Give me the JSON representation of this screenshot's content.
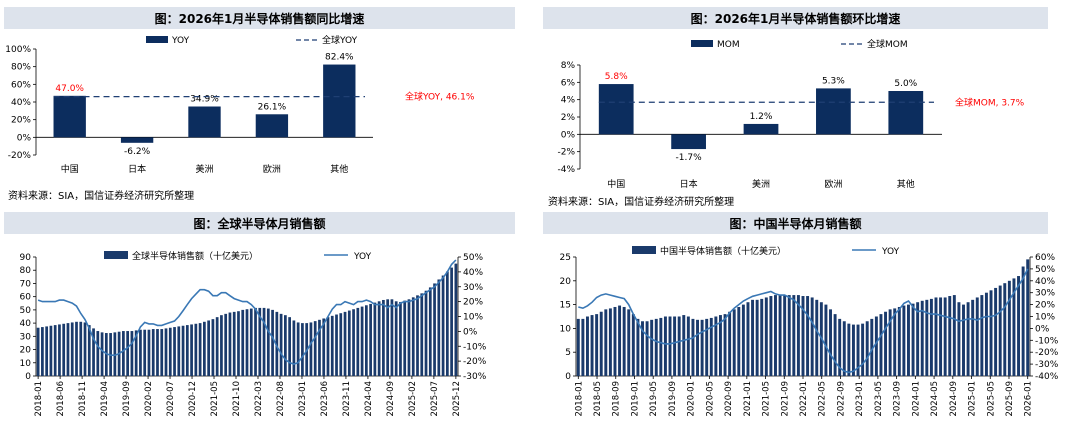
{
  "panels": [
    {
      "title": "图：2026年1月半导体销售额同比增速",
      "source": "资料来源：SIA，国信证券经济研究所整理",
      "chart_data": {
        "type": "bar",
        "categories": [
          "中国",
          "日本",
          "美洲",
          "欧洲",
          "其他"
        ],
        "series": [
          {
            "name": "YOY",
            "values": [
              47.0,
              -6.2,
              34.9,
              26.1,
              82.4
            ]
          }
        ],
        "value_labels": [
          "47.0%",
          "-6.2%",
          "34.9%",
          "26.1%",
          "82.4%"
        ],
        "reference_line": {
          "name": "全球YOY",
          "value": 46.1,
          "label": "全球YOY, 46.1%"
        },
        "yticks": [
          100,
          80,
          60,
          40,
          20,
          0,
          -20
        ],
        "ytick_labels": [
          "100%",
          "80%",
          "60%",
          "40%",
          "20%",
          "0%",
          "-20%"
        ],
        "ylim": [
          -20,
          100
        ],
        "legend": [
          "YOY",
          "全球YOY"
        ],
        "colors": {
          "bar": "#0c2d5e",
          "line": "#1f3f73",
          "highlight": "#ff0000"
        }
      }
    },
    {
      "title": "图：2026年1月半导体销售额环比增速",
      "source": "资料来源：SIA，国信证券经济研究所整理",
      "chart_data": {
        "type": "bar",
        "categories": [
          "中国",
          "日本",
          "美洲",
          "欧洲",
          "其他"
        ],
        "series": [
          {
            "name": "MOM",
            "values": [
              5.8,
              -1.7,
              1.2,
              5.3,
              5.0
            ]
          }
        ],
        "value_labels": [
          "5.8%",
          "-1.7%",
          "1.2%",
          "5.3%",
          "5.0%"
        ],
        "reference_line": {
          "name": "全球MOM",
          "value": 3.7,
          "label": "全球MOM, 3.7%"
        },
        "yticks": [
          8,
          6,
          4,
          2,
          0,
          -2,
          -4
        ],
        "ytick_labels": [
          "8%",
          "6%",
          "4%",
          "2%",
          "0%",
          "-2%",
          "-4%"
        ],
        "ylim": [
          -4,
          8
        ],
        "legend": [
          "MOM",
          "全球MOM"
        ],
        "colors": {
          "bar": "#0c2d5e",
          "line": "#1f3f73",
          "highlight": "#ff0000"
        }
      }
    },
    {
      "title": "图：全球半导体月销售额",
      "chart_data": {
        "type": "bar",
        "legend": [
          "全球半导体销售额（十亿美元）",
          "YOY"
        ],
        "start": "2018-01",
        "bar_values": [
          36.5,
          37.0,
          37.5,
          38.0,
          38.5,
          39.0,
          39.5,
          40.0,
          40.5,
          41.0,
          41.0,
          40.5,
          38.5,
          36.0,
          34.0,
          33.0,
          32.5,
          32.5,
          33.0,
          33.5,
          34.0,
          34.0,
          34.0,
          34.5,
          35.0,
          35.0,
          35.0,
          35.5,
          35.5,
          35.5,
          36.0,
          36.5,
          37.0,
          37.5,
          38.0,
          38.5,
          39.0,
          39.5,
          40.0,
          41.0,
          42.0,
          43.0,
          44.5,
          46.0,
          47.0,
          48.0,
          48.5,
          49.0,
          50.0,
          50.5,
          51.0,
          51.5,
          51.5,
          51.5,
          51.0,
          50.0,
          48.5,
          47.0,
          46.0,
          44.5,
          42.0,
          40.5,
          40.0,
          40.0,
          40.5,
          41.5,
          42.5,
          43.5,
          44.5,
          45.5,
          46.5,
          47.5,
          48.5,
          49.5,
          50.5,
          51.5,
          52.5,
          53.5,
          54.5,
          55.5,
          56.5,
          57.5,
          58.0,
          58.0,
          56.5,
          56.0,
          57.0,
          58.0,
          59.5,
          61.0,
          62.5,
          64.5,
          67.0,
          70.0,
          73.0,
          76.0,
          79.0,
          82.0,
          85.0
        ],
        "yoy_values": [
          21,
          20,
          20,
          20,
          20,
          21,
          21,
          20,
          19,
          17,
          12,
          8,
          2,
          -5,
          -10,
          -13,
          -15,
          -16,
          -16,
          -15,
          -13,
          -11,
          -8,
          -3,
          3,
          6,
          5,
          5,
          4,
          4,
          5,
          6,
          7,
          10,
          14,
          18,
          22,
          25,
          28,
          28,
          27,
          24,
          24,
          26,
          26,
          24,
          22,
          21,
          20,
          20,
          18,
          15,
          10,
          6,
          0,
          -4,
          -10,
          -15,
          -19,
          -21,
          -22,
          -21,
          -17,
          -13,
          -8,
          -4,
          1,
          5,
          10,
          15,
          18,
          18,
          20,
          19,
          18,
          20,
          20,
          21,
          20,
          18,
          18,
          18,
          16,
          18,
          16,
          19,
          20,
          20,
          21,
          22,
          24,
          26,
          28,
          30,
          33,
          36,
          40,
          45,
          48
        ],
        "x_tick_labels": [
          "2018-01",
          "2018-06",
          "2018-11",
          "2019-04",
          "2019-09",
          "2020-02",
          "2020-07",
          "2020-12",
          "2021-05",
          "2021-10",
          "2022-03",
          "2022-08",
          "2023-01",
          "2023-06",
          "2023-11",
          "2024-04",
          "2024-09",
          "2025-02",
          "2025-07",
          "2025-12"
        ],
        "left_axis": {
          "ylim": [
            0,
            90
          ],
          "ticks": [
            90,
            80,
            70,
            60,
            50,
            40,
            30,
            20,
            10,
            0
          ],
          "labels": [
            "90",
            "80",
            "70",
            "60",
            "50",
            "40",
            "30",
            "20",
            "10",
            "0"
          ]
        },
        "right_axis": {
          "ylim": [
            -30,
            50
          ],
          "ticks": [
            50,
            40,
            30,
            20,
            10,
            0,
            -10,
            -20,
            -30
          ],
          "labels": [
            "50%",
            "40%",
            "30%",
            "20%",
            "10%",
            "0%",
            "-10%",
            "-20%",
            "-30%"
          ]
        },
        "colors": {
          "bar": "#1a3a6b",
          "line": "#3a78b5"
        }
      }
    },
    {
      "title": "图：中国半导体月销售额",
      "chart_data": {
        "type": "bar",
        "legend": [
          "中国半导体销售额（十亿美元）",
          "YOY"
        ],
        "start": "2018-01",
        "bar_values": [
          12.0,
          12.0,
          12.5,
          12.8,
          13.0,
          13.5,
          14.0,
          14.2,
          14.5,
          14.8,
          14.5,
          14.0,
          13.0,
          12.0,
          11.5,
          11.5,
          11.8,
          12.0,
          12.2,
          12.5,
          12.5,
          12.5,
          12.5,
          12.8,
          12.5,
          12.0,
          11.8,
          11.8,
          12.0,
          12.2,
          12.5,
          12.8,
          13.0,
          13.5,
          14.0,
          14.5,
          15.0,
          15.5,
          16.0,
          16.0,
          16.2,
          16.5,
          16.8,
          17.0,
          17.0,
          17.0,
          17.0,
          17.0,
          17.0,
          16.8,
          16.8,
          16.5,
          16.0,
          15.5,
          15.0,
          14.0,
          13.0,
          12.0,
          11.5,
          11.0,
          10.8,
          10.8,
          11.0,
          11.5,
          12.0,
          12.5,
          13.0,
          13.5,
          14.0,
          14.2,
          14.5,
          14.8,
          15.0,
          15.2,
          15.5,
          15.8,
          16.0,
          16.2,
          16.5,
          16.5,
          16.5,
          16.8,
          17.0,
          15.5,
          15.0,
          15.5,
          16.0,
          16.5,
          17.0,
          17.5,
          18.0,
          18.5,
          19.0,
          19.5,
          20.0,
          20.5,
          21.0,
          23.0,
          24.5
        ],
        "yoy_values": [
          18,
          17,
          19,
          22,
          26,
          28,
          29,
          28,
          27,
          26,
          25,
          20,
          12,
          5,
          -2,
          -6,
          -9,
          -11,
          -12,
          -13,
          -13,
          -12,
          -11,
          -10,
          -9,
          -8,
          -5,
          -3,
          -1,
          1,
          3,
          5,
          8,
          13,
          17,
          20,
          23,
          25,
          27,
          28,
          29,
          30,
          31,
          29,
          28,
          28,
          26,
          24,
          20,
          16,
          11,
          5,
          -2,
          -8,
          -15,
          -22,
          -28,
          -33,
          -36,
          -37,
          -36,
          -33,
          -30,
          -25,
          -18,
          -12,
          -6,
          0,
          6,
          12,
          16,
          21,
          23,
          18,
          14,
          15,
          13,
          12,
          12,
          11,
          10,
          9,
          8,
          6,
          7,
          8,
          8,
          7,
          9,
          10,
          10,
          11,
          14,
          18,
          24,
          30,
          36,
          42,
          50
        ],
        "x_tick_labels": [
          "2018-01",
          "2018-05",
          "2018-09",
          "2019-01",
          "2019-05",
          "2019-09",
          "2020-01",
          "2020-05",
          "2020-09",
          "2021-01",
          "2021-05",
          "2021-09",
          "2022-01",
          "2022-05",
          "2022-09",
          "2023-01",
          "2023-05",
          "2023-09",
          "2024-01",
          "2024-05",
          "2024-09",
          "2025-01",
          "2025-05",
          "2025-09",
          "2026-01"
        ],
        "left_axis": {
          "ylim": [
            0,
            25
          ],
          "ticks": [
            25,
            20,
            15,
            10,
            5,
            0
          ],
          "labels": [
            "25",
            "20",
            "15",
            "10",
            "5",
            "0"
          ]
        },
        "right_axis": {
          "ylim": [
            -40,
            60
          ],
          "ticks": [
            60,
            50,
            40,
            30,
            20,
            10,
            0,
            -10,
            -20,
            -30,
            -40
          ],
          "labels": [
            "60%",
            "50%",
            "40%",
            "30%",
            "20%",
            "10%",
            "0%",
            "-10%",
            "-20%",
            "-30%",
            "-40%"
          ]
        },
        "colors": {
          "bar": "#1a3a6b",
          "line": "#3a78b5"
        }
      }
    }
  ]
}
